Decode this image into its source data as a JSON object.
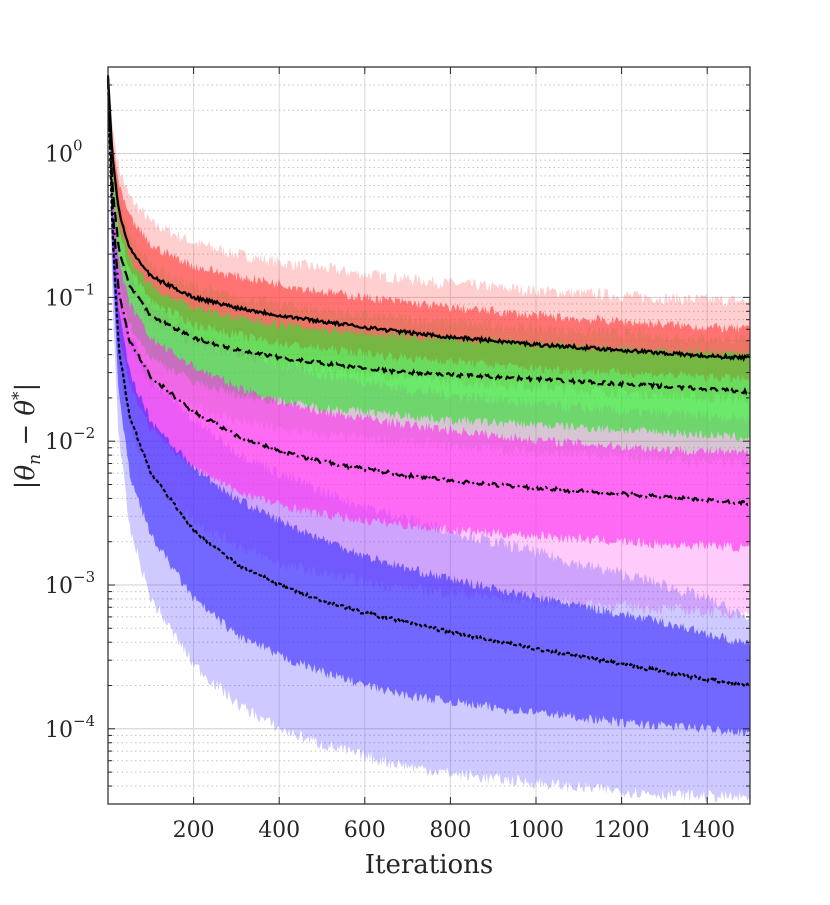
{
  "chart_data": {
    "type": "line",
    "title": "",
    "xlabel": "Iterations",
    "ylabel": "|θn − θ*|",
    "ylabel_parts": {
      "open": "|",
      "theta1": "θ",
      "sub": "n",
      "minus": " − ",
      "theta2": "θ",
      "sup": "*",
      "close": "|"
    },
    "x_scale": "linear",
    "y_scale": "log",
    "xlim": [
      0,
      1500
    ],
    "ylim": [
      3e-05,
      4
    ],
    "xticks": [
      200,
      400,
      600,
      800,
      1000,
      1200,
      1400
    ],
    "xtick_labels": [
      "200",
      "400",
      "600",
      "800",
      "1000",
      "1200",
      "1400"
    ],
    "yticks": [
      {
        "value": 1,
        "base": "10",
        "exp": "0"
      },
      {
        "value": 0.1,
        "base": "10",
        "exp": "−1"
      },
      {
        "value": 0.01,
        "base": "10",
        "exp": "−2"
      },
      {
        "value": 0.001,
        "base": "10",
        "exp": "−3"
      },
      {
        "value": 0.0001,
        "base": "10",
        "exp": "−4"
      }
    ],
    "grid": true,
    "x": [
      0,
      10,
      25,
      50,
      100,
      200,
      300,
      400,
      500,
      600,
      700,
      800,
      900,
      1000,
      1100,
      1200,
      1300,
      1400,
      1500
    ],
    "series": [
      {
        "name": "red",
        "line_style": "solid",
        "line_color": "#000000",
        "fill_color": "#ff3b3b",
        "median": [
          3.5,
          1.0,
          0.4,
          0.22,
          0.14,
          0.1,
          0.085,
          0.075,
          0.068,
          0.062,
          0.057,
          0.053,
          0.05,
          0.047,
          0.045,
          0.043,
          0.041,
          0.039,
          0.038
        ],
        "inner": {
          "low": [
            3.5,
            0.75,
            0.3,
            0.16,
            0.095,
            0.065,
            0.055,
            0.048,
            0.044,
            0.041,
            0.038,
            0.036,
            0.034,
            0.032,
            0.031,
            0.03,
            0.029,
            0.028,
            0.027
          ],
          "high": [
            3.5,
            1.3,
            0.6,
            0.36,
            0.23,
            0.165,
            0.14,
            0.125,
            0.11,
            0.1,
            0.092,
            0.085,
            0.08,
            0.075,
            0.071,
            0.068,
            0.065,
            0.062,
            0.06
          ]
        },
        "outer": {
          "low": [
            3.5,
            0.6,
            0.24,
            0.12,
            0.07,
            0.048,
            0.04,
            0.035,
            0.032,
            0.03,
            0.028,
            0.026,
            0.025,
            0.024,
            0.023,
            0.022,
            0.021,
            0.02,
            0.02
          ],
          "high": [
            3.6,
            1.6,
            0.8,
            0.5,
            0.33,
            0.24,
            0.2,
            0.175,
            0.16,
            0.145,
            0.135,
            0.125,
            0.118,
            0.112,
            0.107,
            0.103,
            0.099,
            0.096,
            0.094
          ]
        }
      },
      {
        "name": "green",
        "line_style": "dashed",
        "line_color": "#000000",
        "fill_color": "#2fe02f",
        "median": [
          3.4,
          0.6,
          0.22,
          0.12,
          0.075,
          0.052,
          0.043,
          0.038,
          0.035,
          0.032,
          0.03,
          0.029,
          0.028,
          0.027,
          0.026,
          0.025,
          0.024,
          0.023,
          0.022
        ],
        "inner": {
          "low": [
            3.4,
            0.4,
            0.13,
            0.065,
            0.038,
            0.026,
            0.021,
            0.019,
            0.017,
            0.016,
            0.015,
            0.014,
            0.0135,
            0.013,
            0.0125,
            0.012,
            0.0115,
            0.011,
            0.0105
          ],
          "high": [
            3.4,
            0.85,
            0.32,
            0.19,
            0.12,
            0.085,
            0.072,
            0.065,
            0.06,
            0.056,
            0.053,
            0.051,
            0.049,
            0.047,
            0.045,
            0.043,
            0.042,
            0.041,
            0.04
          ]
        },
        "outer": {
          "low": [
            3.4,
            0.3,
            0.09,
            0.045,
            0.025,
            0.017,
            0.014,
            0.012,
            0.011,
            0.0105,
            0.0098,
            0.0092,
            0.0088,
            0.0084,
            0.008,
            0.0077,
            0.0075,
            0.0072,
            0.007
          ],
          "high": [
            3.5,
            1.1,
            0.45,
            0.27,
            0.17,
            0.12,
            0.1,
            0.09,
            0.082,
            0.076,
            0.071,
            0.067,
            0.064,
            0.061,
            0.058,
            0.056,
            0.054,
            0.052,
            0.05
          ]
        }
      },
      {
        "name": "magenta",
        "line_style": "dashdot",
        "line_color": "#000000",
        "fill_color": "#ff2ef0",
        "median": [
          3.3,
          0.45,
          0.11,
          0.05,
          0.028,
          0.016,
          0.011,
          0.0085,
          0.0072,
          0.0064,
          0.0058,
          0.0053,
          0.005,
          0.0047,
          0.0045,
          0.0043,
          0.0041,
          0.0039,
          0.0037
        ],
        "inner": {
          "low": [
            3.3,
            0.28,
            0.06,
            0.025,
            0.012,
            0.0065,
            0.0045,
            0.0036,
            0.0031,
            0.0028,
            0.0026,
            0.0024,
            0.0023,
            0.0022,
            0.0021,
            0.002,
            0.0019,
            0.0019,
            0.0018
          ],
          "high": [
            3.3,
            0.65,
            0.18,
            0.09,
            0.052,
            0.033,
            0.024,
            0.019,
            0.016,
            0.0145,
            0.013,
            0.012,
            0.011,
            0.0102,
            0.0097,
            0.0092,
            0.0088,
            0.0085,
            0.0082
          ]
        },
        "outer": {
          "low": [
            3.3,
            0.2,
            0.035,
            0.013,
            0.0055,
            0.0028,
            0.0019,
            0.0014,
            0.0012,
            0.00105,
            0.00095,
            0.00088,
            0.00082,
            0.00078,
            0.00074,
            0.00071,
            0.00068,
            0.00065,
            0.00062
          ],
          "high": [
            3.4,
            0.9,
            0.27,
            0.14,
            0.085,
            0.055,
            0.042,
            0.034,
            0.029,
            0.026,
            0.023,
            0.021,
            0.0195,
            0.018,
            0.017,
            0.016,
            0.0155,
            0.015,
            0.0145
          ]
        }
      },
      {
        "name": "blue",
        "line_style": "dotted",
        "line_color": "#000000",
        "fill_color": "#3a2bff",
        "median": [
          3.2,
          0.3,
          0.045,
          0.015,
          0.006,
          0.0024,
          0.0014,
          0.001,
          0.00078,
          0.00064,
          0.00055,
          0.00047,
          0.00041,
          0.00036,
          0.00032,
          0.00028,
          0.00025,
          0.00022,
          0.0002
        ],
        "inner": {
          "low": [
            3.2,
            0.18,
            0.022,
            0.006,
            0.0022,
            0.0008,
            0.00045,
            0.00032,
            0.00025,
            0.0002,
            0.00017,
            0.000155,
            0.00014,
            0.00013,
            0.00012,
            0.00011,
            0.000105,
            0.0001,
            9.5e-05
          ],
          "high": [
            3.2,
            0.45,
            0.08,
            0.03,
            0.014,
            0.0065,
            0.004,
            0.0028,
            0.0021,
            0.0016,
            0.0013,
            0.0011,
            0.00095,
            0.00082,
            0.00072,
            0.00063,
            0.00055,
            0.00046,
            0.00038
          ]
        },
        "outer": {
          "low": [
            3.2,
            0.1,
            0.011,
            0.0025,
            0.0008,
            0.00028,
            0.00015,
            0.0001,
            7.8e-05,
            6.4e-05,
            5.5e-05,
            4.9e-05,
            4.5e-05,
            4.2e-05,
            3.9e-05,
            3.7e-05,
            3.5e-05,
            3.4e-05,
            3.3e-05
          ],
          "high": [
            3.3,
            0.65,
            0.13,
            0.055,
            0.028,
            0.014,
            0.0085,
            0.006,
            0.0045,
            0.0035,
            0.0029,
            0.0024,
            0.002,
            0.0017,
            0.0014,
            0.0012,
            0.001,
            0.0008,
            0.00058
          ]
        }
      }
    ]
  }
}
